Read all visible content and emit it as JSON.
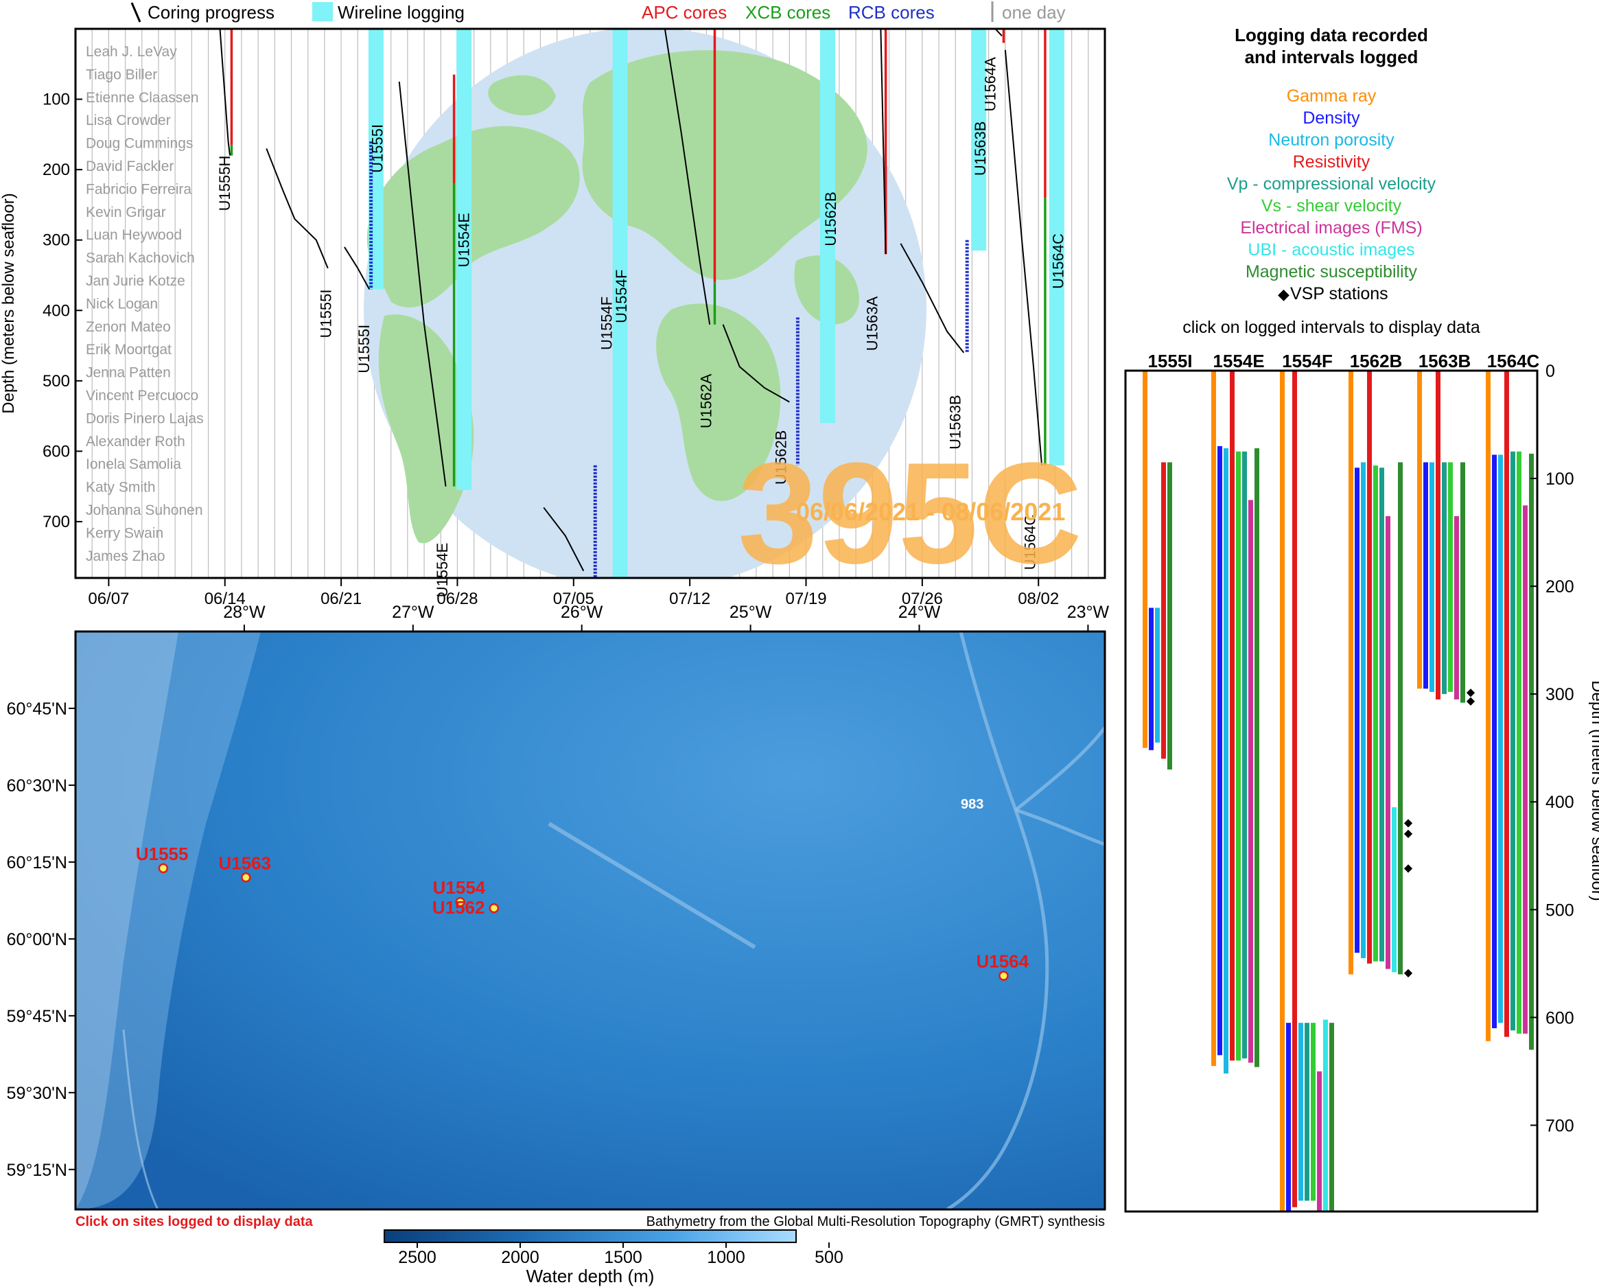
{
  "legend": {
    "coring_progress": "Coring progress",
    "wireline_logging": "Wireline logging",
    "apc": "APC cores",
    "xcb": "XCB cores",
    "rcb": "RCB cores",
    "one_day": "one day"
  },
  "colors": {
    "apc": "#e31a1c",
    "xcb": "#1a9e1a",
    "rcb": "#1f2fc8",
    "wireline": "#7ff3f7",
    "expedition": "#f9b24d",
    "site_label": "#e31a1c",
    "water": "#2f86cf",
    "land": "#a9dba0",
    "globe": "#cfe2f3"
  },
  "names": [
    "Leah J. LeVay",
    "Tiago Biller",
    "Etienne Claassen",
    "Lisa Crowder",
    "Doug Cummings",
    "David Fackler",
    "Fabricio Ferreira",
    "Kevin Grigar",
    "Luan Heywood",
    "Sarah Kachovich",
    "Jan Jurie Kotze",
    "Nick Logan",
    "Zenon Mateo",
    "Erik Moortgat",
    "Jenna Patten",
    "Vincent Percuoco",
    "Doris Pinero Lajas",
    "Alexander Roth",
    "Ionela Samolia",
    "Katy Smith",
    "Johanna Suhonen",
    "Kerry Swain",
    "James Zhao"
  ],
  "expedition": {
    "number": "395C",
    "dates": "06/06/2021 - 08/06/2021"
  },
  "timeline": {
    "type": "line",
    "ylabel": "Depth (meters below seafloor)",
    "y_ticks": [
      "100",
      "200",
      "300",
      "400",
      "500",
      "600",
      "700"
    ],
    "y_tick_values": [
      100,
      200,
      300,
      400,
      500,
      600,
      700
    ],
    "ylim": [
      0,
      780
    ],
    "x_ticks": [
      "06/07",
      "06/14",
      "06/21",
      "06/28",
      "07/05",
      "07/12",
      "07/19",
      "07/26",
      "08/02"
    ],
    "x_tick_days": [
      1,
      8,
      15,
      22,
      29,
      36,
      43,
      50,
      57
    ],
    "xlim_days": [
      -1,
      61
    ],
    "comment_x": "days counted from 06/06/2021",
    "holes": [
      {
        "name": "U1555H",
        "label_day": 8.3,
        "label_depth": 180,
        "coring": [
          [
            7.7,
            0
          ],
          [
            8.2,
            160
          ],
          [
            8.3,
            180
          ]
        ],
        "cores": [
          {
            "type": "apc",
            "day": 8.4,
            "top": 0,
            "bot": 165
          },
          {
            "type": "xcb",
            "day": 8.4,
            "top": 165,
            "bot": 180
          }
        ]
      },
      {
        "name": "U1555I",
        "label_day": 14.4,
        "label_depth": 370,
        "coring": [
          [
            10.5,
            170
          ],
          [
            11.5,
            230
          ],
          [
            12.2,
            270
          ],
          [
            13.5,
            300
          ],
          [
            14.2,
            340
          ]
        ],
        "cores": []
      },
      {
        "name": "U1555I",
        "label_day": 16.7,
        "label_depth": 420,
        "coring": [
          [
            15.2,
            310
          ],
          [
            16,
            340
          ],
          [
            16.7,
            370
          ]
        ],
        "cores": [
          {
            "type": "rcb",
            "day": 16.8,
            "top": 160,
            "bot": 370
          }
        ],
        "wireline": {
          "day": 17.1,
          "top": 0,
          "bot": 370
        },
        "label2_day": 17.5,
        "label2_depth": 170,
        "label2": "U1555I"
      },
      {
        "name": "U1554E",
        "label_day": 21.4,
        "label_depth": 730,
        "coring": [
          [
            18.5,
            75
          ],
          [
            19.3,
            260
          ],
          [
            20,
            420
          ],
          [
            20.8,
            560
          ],
          [
            21.3,
            650
          ]
        ],
        "cores": [
          {
            "type": "apc",
            "day": 21.8,
            "top": 65,
            "bot": 220
          },
          {
            "type": "xcb",
            "day": 21.8,
            "top": 220,
            "bot": 650
          }
        ],
        "wireline": {
          "day": 22.4,
          "top": 0,
          "bot": 655
        },
        "label2_day": 22.7,
        "label2_depth": 300,
        "label2": "U1554E"
      },
      {
        "name": "U1554F",
        "label_day": 31.3,
        "label_depth": 380,
        "coring": [
          [
            27.2,
            680
          ],
          [
            28.5,
            720
          ],
          [
            29.6,
            770
          ]
        ],
        "cores": [
          {
            "type": "rcb",
            "day": 30.3,
            "top": 620,
            "bot": 780
          }
        ],
        "wireline": {
          "day": 31.8,
          "top": 0,
          "bot": 780
        },
        "label2_day": 32.2,
        "label2_depth": 380,
        "label2": "U1554F"
      },
      {
        "name": "U1562A",
        "label_day": 37.3,
        "label_depth": 490,
        "coring": [
          [
            34.5,
            0
          ],
          [
            35.5,
            150
          ],
          [
            36.6,
            330
          ],
          [
            37.2,
            420
          ]
        ],
        "cores": [
          {
            "type": "apc",
            "day": 37.5,
            "top": 0,
            "bot": 360
          },
          {
            "type": "xcb",
            "day": 37.5,
            "top": 360,
            "bot": 420
          }
        ]
      },
      {
        "name": "U1562B",
        "label_day": 41.8,
        "label_depth": 570,
        "coring": [
          [
            38,
            420
          ],
          [
            39,
            480
          ],
          [
            40.5,
            510
          ],
          [
            42,
            530
          ]
        ],
        "cores": [
          {
            "type": "rcb",
            "day": 42.5,
            "top": 410,
            "bot": 620
          }
        ],
        "wireline": {
          "day": 44.3,
          "top": 0,
          "bot": 560
        },
        "label2_day": 44.8,
        "label2_depth": 270,
        "label2": "U1562B"
      },
      {
        "name": "U1563A",
        "label_day": 47.3,
        "label_depth": 380,
        "coring": [
          [
            47.5,
            0
          ],
          [
            47.8,
            320
          ]
        ],
        "cores": [
          {
            "type": "apc",
            "day": 47.8,
            "top": 0,
            "bot": 320
          }
        ]
      },
      {
        "name": "U1563B",
        "label_day": 52.3,
        "label_depth": 520,
        "coring": [
          [
            48.7,
            305
          ],
          [
            50,
            360
          ],
          [
            51.5,
            430
          ],
          [
            52.5,
            460
          ]
        ],
        "cores": [
          {
            "type": "rcb",
            "day": 52.7,
            "top": 300,
            "bot": 460
          }
        ],
        "wireline": {
          "day": 53.4,
          "top": 0,
          "bot": 315
        },
        "label2_day": 53.8,
        "label2_depth": 170,
        "label2": "U1563B"
      },
      {
        "name": "U1564A",
        "label_day": 54.4,
        "label_depth": 40,
        "coring": [
          [
            54.4,
            0
          ],
          [
            54.8,
            10
          ]
        ],
        "cores": [
          {
            "type": "apc",
            "day": 54.9,
            "top": 0,
            "bot": 20
          }
        ]
      },
      {
        "name": "U1564C",
        "label_day": 56.8,
        "label_depth": 690,
        "coring": [
          [
            55,
            30
          ],
          [
            56,
            300
          ],
          [
            56.7,
            480
          ],
          [
            57.2,
            620
          ]
        ],
        "cores": [
          {
            "type": "apc",
            "day": 57.4,
            "top": 0,
            "bot": 240
          },
          {
            "type": "xcb",
            "day": 57.4,
            "top": 240,
            "bot": 620
          }
        ],
        "wireline": {
          "day": 58.1,
          "top": 0,
          "bot": 620
        },
        "label2_day": 58.5,
        "label2_depth": 330,
        "label2": "U1564C"
      }
    ]
  },
  "map": {
    "lon_ticks": [
      "28°W",
      "27°W",
      "26°W",
      "25°W",
      "24°W",
      "23°W"
    ],
    "lon_values": [
      -28,
      -27,
      -26,
      -25,
      -24,
      -23
    ],
    "lat_ticks": [
      "60°45'N",
      "60°30'N",
      "60°15'N",
      "60°00'N",
      "59°45'N",
      "59°30'N",
      "59°15'N"
    ],
    "lat_values": [
      60.75,
      60.5,
      60.25,
      60.0,
      59.75,
      59.5,
      59.25
    ],
    "lon_range": [
      -29.0,
      -22.9
    ],
    "lat_range": [
      59.12,
      61.0
    ],
    "sites": [
      {
        "name": "U1555",
        "lon": -28.48,
        "lat": 60.23
      },
      {
        "name": "U1563",
        "lon": -27.99,
        "lat": 60.2
      },
      {
        "name": "U1554",
        "lon": -26.72,
        "lat": 60.12
      },
      {
        "name": "U1562",
        "lon": -26.52,
        "lat": 60.1
      },
      {
        "name": "U1564",
        "lon": -23.5,
        "lat": 59.88
      }
    ],
    "odp_label": "983",
    "click_note": "Click on sites logged to display data",
    "credit": "Bathymetry from the Global Multi-Resolution Topography (GMRT) synthesis",
    "colorbar": {
      "label": "Water depth (m)",
      "ticks": [
        "2500",
        "2000",
        "1500",
        "1000",
        "500"
      ]
    }
  },
  "logging": {
    "title_line1": "Logging data recorded",
    "title_line2": "and intervals logged",
    "legend": [
      {
        "name": "Gamma ray",
        "color": "#ff8c00"
      },
      {
        "name": "Density",
        "color": "#1a1aff"
      },
      {
        "name": "Neutron porosity",
        "color": "#1ab8e6"
      },
      {
        "name": "Resistivity",
        "color": "#e31a1c"
      },
      {
        "name": "Vp - compressional velocity",
        "color": "#1a9e8c"
      },
      {
        "name": "Vs - shear velocity",
        "color": "#33cc33"
      },
      {
        "name": "Electrical images (FMS)",
        "color": "#cc3399"
      },
      {
        "name": "UBI - acoustic images",
        "color": "#33e6e6"
      },
      {
        "name": "Magnetic susceptibility",
        "color": "#2e8b2e"
      },
      {
        "name": "VSP stations",
        "color": "#000000"
      }
    ],
    "vsp_symbol": "◆",
    "click_note": "click on logged intervals to display data",
    "ylabel": "Depth (meters below seafloor)",
    "y_ticks": [
      "0",
      "100",
      "200",
      "300",
      "400",
      "500",
      "600",
      "700"
    ],
    "y_tick_values": [
      0,
      100,
      200,
      300,
      400,
      500,
      600,
      700
    ],
    "ylim": [
      0,
      780
    ],
    "holes": [
      {
        "name": "1555I",
        "bars": [
          [
            "#ff8c00",
            0,
            350
          ],
          [
            "#1a1aff",
            220,
            352
          ],
          [
            "#1ab8e6",
            220,
            345
          ],
          [
            "#e31a1c",
            85,
            360
          ],
          [
            "#2e8b2e",
            85,
            370
          ]
        ],
        "vsp": []
      },
      {
        "name": "1554E",
        "bars": [
          [
            "#ff8c00",
            0,
            645
          ],
          [
            "#1a1aff",
            70,
            635
          ],
          [
            "#1ab8e6",
            72,
            652
          ],
          [
            "#e31a1c",
            0,
            640
          ],
          [
            "#33cc33",
            75,
            640
          ],
          [
            "#1a9e8c",
            75,
            638
          ],
          [
            "#cc3399",
            120,
            642
          ],
          [
            "#2e8b2e",
            72,
            646
          ]
        ],
        "vsp": []
      },
      {
        "name": "1554F",
        "bars": [
          [
            "#ff8c00",
            0,
            780
          ],
          [
            "#1a1aff",
            605,
            780
          ],
          [
            "#e31a1c",
            0,
            776
          ],
          [
            "#1ab8e6",
            605,
            770
          ],
          [
            "#1a9e8c",
            605,
            770
          ],
          [
            "#33cc33",
            605,
            770
          ],
          [
            "#cc3399",
            650,
            780
          ],
          [
            "#33e6e6",
            602,
            780
          ],
          [
            "#2e8b2e",
            605,
            780
          ]
        ],
        "vsp": []
      },
      {
        "name": "1562B",
        "bars": [
          [
            "#ff8c00",
            0,
            560
          ],
          [
            "#1a1aff",
            90,
            540
          ],
          [
            "#1ab8e6",
            85,
            545
          ],
          [
            "#e31a1c",
            0,
            550
          ],
          [
            "#33cc33",
            88,
            548
          ],
          [
            "#1a9e8c",
            90,
            548
          ],
          [
            "#cc3399",
            135,
            555
          ],
          [
            "#33e6e6",
            405,
            558
          ],
          [
            "#2e8b2e",
            85,
            560
          ]
        ],
        "vsp": [
          418,
          428,
          460,
          557
        ]
      },
      {
        "name": "1563B",
        "bars": [
          [
            "#ff8c00",
            0,
            295
          ],
          [
            "#1a1aff",
            85,
            295
          ],
          [
            "#1ab8e6",
            85,
            298
          ],
          [
            "#e31a1c",
            0,
            305
          ],
          [
            "#1a9e8c",
            85,
            300
          ],
          [
            "#33cc33",
            85,
            298
          ],
          [
            "#cc3399",
            135,
            305
          ],
          [
            "#2e8b2e",
            85,
            308
          ]
        ],
        "vsp": [
          297,
          305
        ]
      },
      {
        "name": "1564C",
        "bars": [
          [
            "#ff8c00",
            0,
            622
          ],
          [
            "#1a1aff",
            78,
            610
          ],
          [
            "#1ab8e6",
            78,
            605
          ],
          [
            "#e31a1c",
            0,
            618
          ],
          [
            "#1a9e8c",
            75,
            612
          ],
          [
            "#33cc33",
            75,
            615
          ],
          [
            "#cc3399",
            125,
            615
          ],
          [
            "#2e8b2e",
            77,
            630
          ]
        ],
        "vsp": []
      }
    ]
  }
}
